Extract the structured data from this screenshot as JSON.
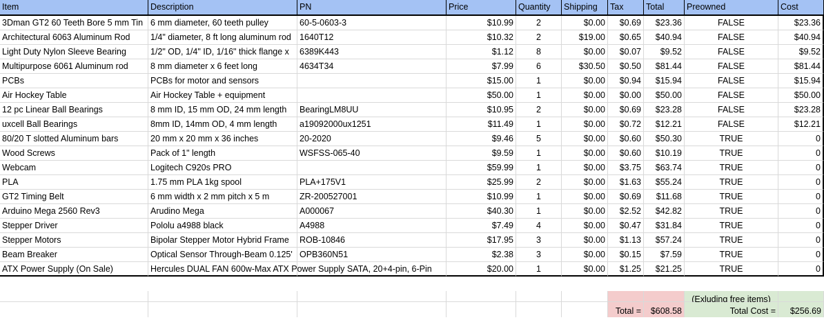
{
  "headers": [
    "Item",
    "Description",
    "PN",
    "Price",
    "Quantity",
    "Shipping",
    "Tax",
    "Total",
    "Preowned",
    "Cost"
  ],
  "rows": [
    [
      "3Dman GT2 60 Teeth Bore 5 mm Tin",
      "6 mm diameter, 60 teeth pulley",
      "60-5-0603-3",
      "$10.99",
      "2",
      "$0.00",
      "$0.69",
      "$23.36",
      "FALSE",
      "$23.36"
    ],
    [
      "Architectural 6063 Aluminum Rod",
      "1/4\" diameter, 8 ft long aluminum rod",
      "1640T12",
      "$10.32",
      "2",
      "$19.00",
      "$0.65",
      "$40.94",
      "FALSE",
      "$40.94"
    ],
    [
      "Light Duty Nylon Sleeve Bearing",
      "1/2\" OD, 1/4\" ID, 1/16\" thick flange x",
      "6389K443",
      "$1.12",
      "8",
      "$0.00",
      "$0.07",
      "$9.52",
      "FALSE",
      "$9.52"
    ],
    [
      "Multipurpose 6061 Aluminum rod",
      "8 mm diameter x 6 feet long",
      "4634T34",
      "$7.99",
      "6",
      "$30.50",
      "$0.50",
      "$81.44",
      "FALSE",
      "$81.44"
    ],
    [
      "PCBs",
      "PCBs for motor and sensors",
      "",
      "$15.00",
      "1",
      "$0.00",
      "$0.94",
      "$15.94",
      "FALSE",
      "$15.94"
    ],
    [
      "Air Hockey Table",
      "Air Hockey Table + equipment",
      "",
      "$50.00",
      "1",
      "$0.00",
      "$0.00",
      "$50.00",
      "FALSE",
      "$50.00"
    ],
    [
      "12 pc Linear Ball Bearings",
      "8 mm ID, 15 mm OD, 24 mm length",
      "BearingLM8UU",
      "$10.95",
      "2",
      "$0.00",
      "$0.69",
      "$23.28",
      "FALSE",
      "$23.28"
    ],
    [
      "uxcell Ball Bearings",
      "8mm ID, 14mm OD, 4 mm length",
      "a19092000ux1251",
      "$11.49",
      "1",
      "$0.00",
      "$0.72",
      "$12.21",
      "FALSE",
      "$12.21"
    ],
    [
      "80/20 T slotted Aluminum bars",
      "20 mm x 20 mm x 36 inches",
      "20-2020",
      "$9.46",
      "5",
      "$0.00",
      "$0.60",
      "$50.30",
      "TRUE",
      "0"
    ],
    [
      "Wood Screws",
      "Pack of 1\" length",
      "WSFSS-065-40",
      "$9.59",
      "1",
      "$0.00",
      "$0.60",
      "$10.19",
      "TRUE",
      "0"
    ],
    [
      "Webcam",
      "Logitech C920s PRO",
      "",
      "$59.99",
      "1",
      "$0.00",
      "$3.75",
      "$63.74",
      "TRUE",
      "0"
    ],
    [
      "PLA",
      "1.75 mm PLA 1kg spool",
      "PLA+175V1",
      "$25.99",
      "2",
      "$0.00",
      "$1.63",
      "$55.24",
      "TRUE",
      "0"
    ],
    [
      "GT2 Timing Belt",
      "6 mm width x 2 mm pitch x 5 m",
      "ZR-200527001",
      "$10.99",
      "1",
      "$0.00",
      "$0.69",
      "$11.68",
      "TRUE",
      "0"
    ],
    [
      "Arduino Mega 2560 Rev3",
      "Arudino Mega",
      "A000067",
      "$40.30",
      "1",
      "$0.00",
      "$2.52",
      "$42.82",
      "TRUE",
      "0"
    ],
    [
      "Stepper Driver",
      "Pololu a4988 black",
      "A4988",
      "$7.49",
      "4",
      "$0.00",
      "$0.47",
      "$31.84",
      "TRUE",
      "0"
    ],
    [
      "Stepper Motors",
      "Bipolar Stepper Motor Hybrid Frame",
      "ROB-10846",
      "$17.95",
      "3",
      "$0.00",
      "$1.13",
      "$57.24",
      "TRUE",
      "0"
    ],
    [
      "Beam Breaker",
      "Optical Sensor Through-Beam 0.125'",
      "OPB360N51",
      "$2.38",
      "3",
      "$0.00",
      "$0.15",
      "$7.59",
      "TRUE",
      "0"
    ],
    [
      "ATX Power Supply (On Sale)",
      "Hercules DUAL FAN 600w-Max ATX Power Supply SATA, 20+4-pin, 6-Pin",
      "",
      "$20.00",
      "1",
      "$0.00",
      "$1.25",
      "$21.25",
      "TRUE",
      "0"
    ]
  ],
  "footer": {
    "total_label": "Total =",
    "total_value": "$608.58",
    "excluding_label": "(Exluding free items)",
    "total_cost_label": "Total Cost =",
    "total_cost_value": "$256.69"
  },
  "colors": {
    "header_bg": "#a4c2f4",
    "total_bg": "#f4cccc",
    "cost_bg": "#d9ead3",
    "grid": "#d9d9d9"
  }
}
